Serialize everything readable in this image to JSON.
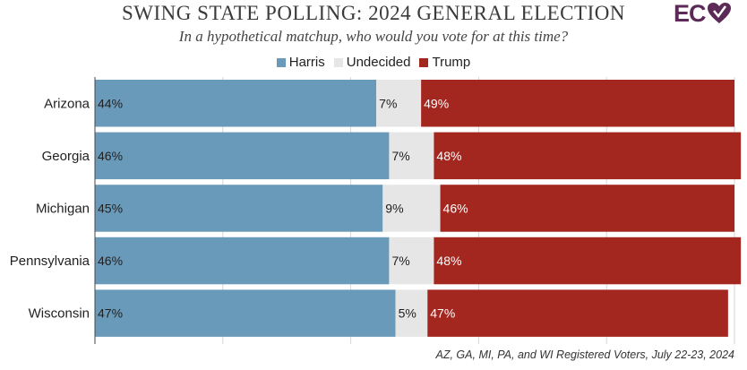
{
  "title": "SWING STATE POLLING: 2024 GENERAL ELECTION",
  "subtitle": "In a hypothetical matchup, who would you vote for at this time?",
  "logo_text": "EC",
  "footnote": "AZ, GA, MI, PA, and WI Registered Voters, July 22-23, 2024",
  "colors": {
    "harris": "#6a9aba",
    "undecided": "#e6e6e6",
    "trump": "#a3261f"
  },
  "chart_data": {
    "type": "bar",
    "orientation": "horizontal",
    "stacked": true,
    "title": "SWING STATE POLLING: 2024 GENERAL ELECTION",
    "subtitle": "In a hypothetical matchup, who would you vote for at this time?",
    "categories": [
      "Arizona",
      "Georgia",
      "Michigan",
      "Pennsylvania",
      "Wisconsin"
    ],
    "series": [
      {
        "name": "Harris",
        "values": [
          44,
          46,
          45,
          46,
          47
        ]
      },
      {
        "name": "Undecided",
        "values": [
          7,
          7,
          9,
          7,
          5
        ]
      },
      {
        "name": "Trump",
        "values": [
          49,
          48,
          46,
          48,
          47
        ]
      }
    ],
    "value_suffix": "%",
    "xlim": [
      0,
      100
    ],
    "legend": "top-center",
    "grid": true
  }
}
